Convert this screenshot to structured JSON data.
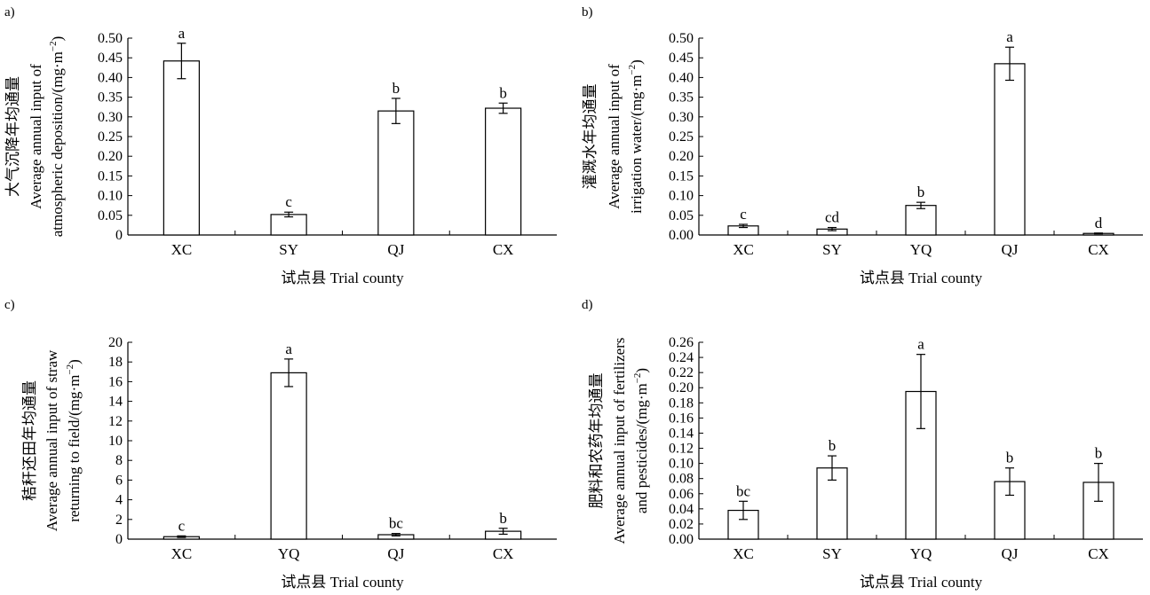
{
  "chart_data": [
    {
      "panel_label": "a)",
      "type": "bar",
      "categories": [
        "XC",
        "SY",
        "QJ",
        "CX"
      ],
      "values": [
        0.442,
        0.052,
        0.315,
        0.322
      ],
      "errors": [
        0.045,
        0.006,
        0.032,
        0.013
      ],
      "significance_letters": [
        "a",
        "c",
        "b",
        "b"
      ],
      "ylabel_cn": "大气沉降年均通量",
      "ylabel_en_1": "Average annual input of",
      "ylabel_en_2": "atmospheric deposition/(mg·m",
      "ylabel_unit_sup": "−2",
      "ylabel_unit_close": ")",
      "xlabel": "试点县 Trial county",
      "ylim": [
        0,
        0.5
      ],
      "yticks": [
        "0",
        "0.05",
        "0.10",
        "0.15",
        "0.20",
        "0.25",
        "0.30",
        "0.35",
        "0.40",
        "0.45",
        "0.50"
      ]
    },
    {
      "panel_label": "b)",
      "type": "bar",
      "categories": [
        "XC",
        "SY",
        "YQ",
        "QJ",
        "CX"
      ],
      "values": [
        0.023,
        0.015,
        0.075,
        0.435,
        0.004
      ],
      "errors": [
        0.004,
        0.004,
        0.008,
        0.042,
        0.001
      ],
      "significance_letters": [
        "c",
        "cd",
        "b",
        "a",
        "d"
      ],
      "ylabel_cn": "灌溉水年均通量",
      "ylabel_en_1": "Average annual input of",
      "ylabel_en_2": "irrigation water/(mg·m",
      "ylabel_unit_sup": "−2",
      "ylabel_unit_close": ")",
      "xlabel": "试点县 Trial county",
      "ylim": [
        0,
        0.5
      ],
      "yticks": [
        "0.00",
        "0.05",
        "0.10",
        "0.15",
        "0.20",
        "0.25",
        "0.30",
        "0.35",
        "0.40",
        "0.45",
        "0.50"
      ]
    },
    {
      "panel_label": "c)",
      "type": "bar",
      "categories": [
        "XC",
        "YQ",
        "QJ",
        "CX"
      ],
      "values": [
        0.25,
        16.9,
        0.45,
        0.8
      ],
      "errors": [
        0.08,
        1.4,
        0.12,
        0.3
      ],
      "significance_letters": [
        "c",
        "a",
        "bc",
        "b"
      ],
      "ylabel_cn": "秸秆还田年均通量",
      "ylabel_en_1": "Average annual input of straw",
      "ylabel_en_2": "returning to field/(mg·m",
      "ylabel_unit_sup": "−2",
      "ylabel_unit_close": ")",
      "xlabel": "试点县 Trial county",
      "ylim": [
        0,
        20
      ],
      "yticks": [
        "0",
        "2",
        "4",
        "6",
        "8",
        "10",
        "12",
        "14",
        "16",
        "18",
        "20"
      ]
    },
    {
      "panel_label": "d)",
      "type": "bar",
      "categories": [
        "XC",
        "SY",
        "YQ",
        "QJ",
        "CX"
      ],
      "values": [
        0.038,
        0.094,
        0.195,
        0.076,
        0.075
      ],
      "errors": [
        0.012,
        0.016,
        0.049,
        0.018,
        0.025
      ],
      "significance_letters": [
        "bc",
        "b",
        "a",
        "b",
        "b"
      ],
      "ylabel_cn": "肥料和农药年均通量",
      "ylabel_en_1": "Average annual input of fertilizers",
      "ylabel_en_2": "and pesticides/(mg·m",
      "ylabel_unit_sup": "−2",
      "ylabel_unit_close": ")",
      "xlabel": "试点县 Trial county",
      "ylim": [
        0,
        0.26
      ],
      "yticks": [
        "0.00",
        "0.02",
        "0.04",
        "0.06",
        "0.08",
        "0.10",
        "0.12",
        "0.14",
        "0.16",
        "0.18",
        "0.20",
        "0.22",
        "0.24",
        "0.26"
      ]
    }
  ]
}
